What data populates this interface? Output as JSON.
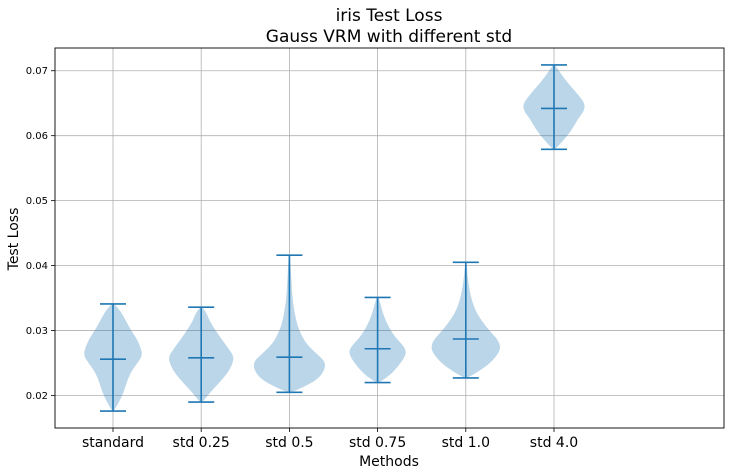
{
  "chart_data": {
    "type": "violin",
    "title_line1": "iris Test Loss",
    "title_line2": "Gauss VRM with different std",
    "xlabel": "Methods",
    "ylabel": "Test Loss",
    "ylim": [
      0.015,
      0.0735
    ],
    "yticks": [
      0.02,
      0.03,
      0.04,
      0.05,
      0.06,
      0.07
    ],
    "ytick_labels": [
      "0.02",
      "0.03",
      "0.04",
      "0.05",
      "0.06",
      "0.07"
    ],
    "grid": true,
    "categories": [
      "standard",
      "std 0.25",
      "std 0.5",
      "std 0.75",
      "std 1.0",
      "std 4.0"
    ],
    "series": [
      {
        "min": 0.0176,
        "median": 0.0256,
        "max": 0.0341,
        "profile": [
          [
            0.0176,
            0.02
          ],
          [
            0.019,
            0.16
          ],
          [
            0.0205,
            0.28
          ],
          [
            0.022,
            0.36
          ],
          [
            0.0235,
            0.46
          ],
          [
            0.0248,
            0.62
          ],
          [
            0.0262,
            0.78
          ],
          [
            0.0275,
            0.72
          ],
          [
            0.0288,
            0.62
          ],
          [
            0.03,
            0.48
          ],
          [
            0.0315,
            0.34
          ],
          [
            0.033,
            0.2
          ],
          [
            0.0341,
            0.03
          ]
        ]
      },
      {
        "min": 0.019,
        "median": 0.0258,
        "max": 0.0336,
        "profile": [
          [
            0.019,
            0.04
          ],
          [
            0.0205,
            0.24
          ],
          [
            0.022,
            0.48
          ],
          [
            0.0235,
            0.7
          ],
          [
            0.0248,
            0.82
          ],
          [
            0.026,
            0.86
          ],
          [
            0.0272,
            0.72
          ],
          [
            0.0285,
            0.56
          ],
          [
            0.03,
            0.38
          ],
          [
            0.0315,
            0.22
          ],
          [
            0.0326,
            0.15
          ],
          [
            0.0336,
            0.03
          ]
        ]
      },
      {
        "min": 0.0205,
        "median": 0.0259,
        "max": 0.0416,
        "profile": [
          [
            0.0205,
            0.06
          ],
          [
            0.0215,
            0.44
          ],
          [
            0.0225,
            0.74
          ],
          [
            0.0238,
            0.92
          ],
          [
            0.0252,
            0.95
          ],
          [
            0.0265,
            0.7
          ],
          [
            0.028,
            0.44
          ],
          [
            0.0295,
            0.3
          ],
          [
            0.031,
            0.2
          ],
          [
            0.033,
            0.13
          ],
          [
            0.035,
            0.08
          ],
          [
            0.038,
            0.05
          ],
          [
            0.0416,
            0.02
          ]
        ]
      },
      {
        "min": 0.022,
        "median": 0.0272,
        "max": 0.0351,
        "profile": [
          [
            0.022,
            0.04
          ],
          [
            0.0232,
            0.34
          ],
          [
            0.0245,
            0.54
          ],
          [
            0.0258,
            0.7
          ],
          [
            0.0268,
            0.76
          ],
          [
            0.0278,
            0.66
          ],
          [
            0.029,
            0.46
          ],
          [
            0.0305,
            0.3
          ],
          [
            0.032,
            0.18
          ],
          [
            0.0335,
            0.1
          ],
          [
            0.0351,
            0.03
          ]
        ]
      },
      {
        "min": 0.0227,
        "median": 0.0287,
        "max": 0.0405,
        "profile": [
          [
            0.0227,
            0.03
          ],
          [
            0.0237,
            0.34
          ],
          [
            0.0248,
            0.6
          ],
          [
            0.026,
            0.8
          ],
          [
            0.0272,
            0.92
          ],
          [
            0.0285,
            0.86
          ],
          [
            0.03,
            0.62
          ],
          [
            0.0315,
            0.42
          ],
          [
            0.033,
            0.26
          ],
          [
            0.035,
            0.14
          ],
          [
            0.0375,
            0.06
          ],
          [
            0.0405,
            0.02
          ]
        ]
      },
      {
        "min": 0.0579,
        "median": 0.0642,
        "max": 0.0709,
        "profile": [
          [
            0.0579,
            0.03
          ],
          [
            0.0595,
            0.28
          ],
          [
            0.061,
            0.48
          ],
          [
            0.0625,
            0.62
          ],
          [
            0.0637,
            0.78
          ],
          [
            0.0648,
            0.82
          ],
          [
            0.066,
            0.68
          ],
          [
            0.0675,
            0.46
          ],
          [
            0.069,
            0.24
          ],
          [
            0.0709,
            0.03
          ]
        ]
      }
    ]
  },
  "colors": {
    "body_fill": "#1f77b4",
    "line": "#1f77b4",
    "grid": "#b0b0b0",
    "axes": "#000000"
  }
}
